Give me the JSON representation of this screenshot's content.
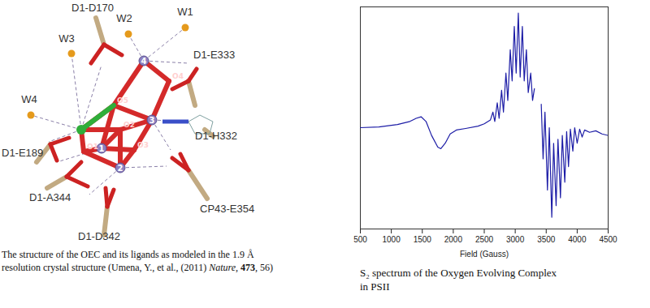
{
  "diagram": {
    "ligand_labels": [
      "D1-D170",
      "D1-E333",
      "D1-H332",
      "D1-E189",
      "D1-A344",
      "CP43-E354",
      "D1-D342"
    ],
    "water_labels": [
      "W1",
      "W2",
      "W3",
      "W4"
    ],
    "atom_labels": [
      "1",
      "2",
      "3",
      "4",
      "O1",
      "O2",
      "O3",
      "O4",
      "O5"
    ],
    "caption": [
      [
        {
          "text": "The structure of the OEC and its ligands as modeled in the 1.9 Å"
        }
      ],
      [
        {
          "text": "resolution crystal structure (Umena, Y., et al., (2011) "
        },
        {
          "text": "Nature",
          "style": "italic"
        },
        {
          "text": ", "
        },
        {
          "text": "473",
          "style": "bold"
        },
        {
          "text": ", 56)"
        }
      ]
    ]
  },
  "chart_data": {
    "type": "line",
    "caption": [
      "S₂ spectrum of the Oxygen Evolving Complex",
      "in PSII"
    ],
    "x_label": "Field (Gauss)",
    "x": [
      500,
      800,
      1100,
      1300,
      1400,
      1480,
      1560,
      1650,
      1750,
      1800,
      1870,
      1950,
      2050,
      2200,
      2400,
      2500,
      2600,
      2640,
      2670,
      2710,
      2740,
      2780,
      2810,
      2850,
      2880,
      2920,
      2950,
      2985,
      3015,
      3050,
      3080,
      3115,
      3145,
      3180,
      3210,
      3250,
      3280,
      3310,
      3360,
      3420,
      3450,
      3480,
      3520,
      3550,
      3590,
      3620,
      3660,
      3690,
      3730,
      3760,
      3800,
      3830,
      3860,
      3890,
      3930,
      3960,
      4000,
      4040,
      4080,
      4120,
      4200,
      4300,
      4400,
      4500
    ],
    "values": [
      0,
      0.01,
      0.04,
      0.08,
      0.12,
      0.14,
      0.08,
      -0.1,
      -0.25,
      -0.27,
      -0.2,
      -0.08,
      -0.03,
      -0.01,
      0.02,
      0.05,
      0.1,
      0.2,
      0.08,
      0.32,
      0.12,
      0.48,
      0.2,
      0.7,
      0.35,
      1.0,
      0.6,
      1.3,
      0.7,
      1.47,
      0.65,
      1.3,
      0.6,
      1.0,
      0.45,
      0.7,
      0.35,
      0.5,
      null,
      0.3,
      -0.4,
      0.2,
      -0.8,
      0,
      -1.15,
      -0.2,
      -1.0,
      -0.15,
      -0.9,
      -0.1,
      -0.7,
      -0.05,
      -0.5,
      -0.02,
      -0.3,
      0,
      -0.2,
      -0.02,
      -0.12,
      -0.03,
      -0.06,
      -0.04,
      -0.08,
      -0.1
    ],
    "color": "#1c1ca6",
    "xlim": [
      500,
      4500
    ],
    "xticks": [
      500,
      1000,
      1500,
      2000,
      2500,
      3000,
      3500,
      4000,
      4500
    ],
    "ylim": [
      -1.3,
      1.55
    ],
    "grid": false,
    "tick_labels": "x"
  }
}
